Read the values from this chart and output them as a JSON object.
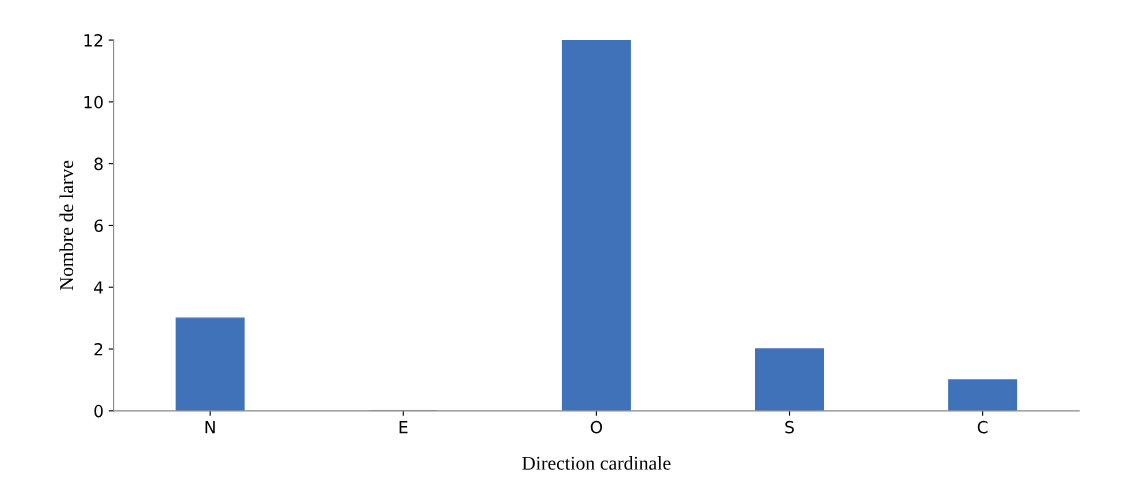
{
  "chart_data": {
    "type": "bar",
    "xlabel": "Direction cardinale",
    "ylabel": "Nombre de larve",
    "categories": [
      "N",
      "E",
      "O",
      "S",
      "C"
    ],
    "values": [
      3,
      0,
      12,
      2,
      1
    ],
    "color": "#3f72b8",
    "ylim": [
      0,
      12
    ],
    "yticks": [
      0,
      2,
      4,
      6,
      8,
      10,
      12
    ],
    "grid": false,
    "legend": false
  }
}
